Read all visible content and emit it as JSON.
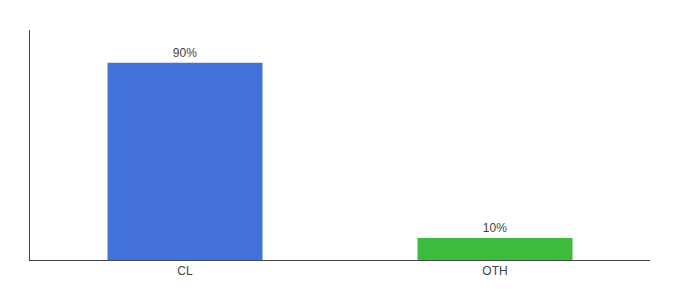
{
  "chart_data": {
    "type": "bar",
    "categories": [
      "CL",
      "OTH"
    ],
    "values": [
      90,
      10
    ],
    "value_labels": [
      "90%",
      "10%"
    ],
    "colors": [
      "#4472db",
      "#3dbb3d"
    ],
    "ylim": [
      0,
      105
    ],
    "yticks": [],
    "grid": false,
    "tick_labels": "x"
  }
}
